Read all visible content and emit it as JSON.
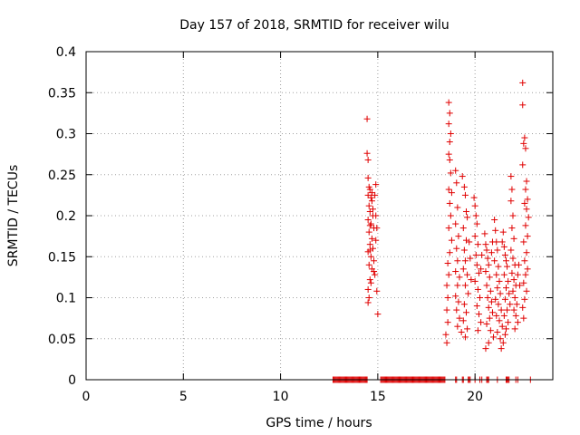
{
  "chart_data": {
    "type": "scatter",
    "title": "Day 157 of 2018, SRMTID for receiver wilu",
    "xlabel": "GPS time / hours",
    "ylabel": "SRMTID / TECUs",
    "xlim": [
      0,
      24
    ],
    "ylim": [
      0,
      0.4
    ],
    "xticks": [
      0,
      5,
      10,
      15,
      20
    ],
    "xtick_labels": [
      "0",
      "5",
      "10",
      "15",
      "20"
    ],
    "yticks": [
      0,
      0.05,
      0.1,
      0.15,
      0.2,
      0.25,
      0.3,
      0.35,
      0.4
    ],
    "ytick_labels": [
      "0",
      "0.05",
      "0.1",
      "0.15",
      "0.2",
      "0.25",
      "0.3",
      "0.35",
      "0.4"
    ],
    "grid": true,
    "marker": "plus",
    "color": "#e00000",
    "series": [
      {
        "name": "SRMTID",
        "points": [
          [
            14.45,
            0.318
          ],
          [
            14.45,
            0.276
          ],
          [
            14.5,
            0.268
          ],
          [
            14.5,
            0.246
          ],
          [
            14.55,
            0.235
          ],
          [
            14.6,
            0.232
          ],
          [
            14.5,
            0.225
          ],
          [
            14.65,
            0.222
          ],
          [
            14.7,
            0.218
          ],
          [
            14.55,
            0.212
          ],
          [
            14.6,
            0.205
          ],
          [
            14.75,
            0.2
          ],
          [
            14.5,
            0.195
          ],
          [
            14.65,
            0.19
          ],
          [
            14.8,
            0.185
          ],
          [
            14.55,
            0.18
          ],
          [
            14.7,
            0.172
          ],
          [
            14.6,
            0.165
          ],
          [
            14.75,
            0.16
          ],
          [
            14.5,
            0.156
          ],
          [
            14.65,
            0.15
          ],
          [
            14.8,
            0.145
          ],
          [
            14.55,
            0.14
          ],
          [
            14.7,
            0.135
          ],
          [
            14.85,
            0.128
          ],
          [
            14.6,
            0.122
          ],
          [
            14.5,
            0.11
          ],
          [
            14.55,
            0.1
          ],
          [
            14.5,
            0.094
          ],
          [
            14.95,
            0.108
          ],
          [
            15.0,
            0.08
          ],
          [
            14.9,
            0.238
          ],
          [
            14.85,
            0.225
          ],
          [
            14.9,
            0.2
          ],
          [
            14.95,
            0.185
          ],
          [
            14.9,
            0.17
          ],
          [
            14.6,
            0.188
          ],
          [
            14.75,
            0.208
          ],
          [
            14.7,
            0.228
          ],
          [
            14.6,
            0.158
          ],
          [
            14.8,
            0.132
          ],
          [
            14.65,
            0.118
          ],
          [
            18.65,
            0.338
          ],
          [
            18.7,
            0.325
          ],
          [
            18.65,
            0.312
          ],
          [
            18.75,
            0.3
          ],
          [
            18.7,
            0.29
          ],
          [
            18.65,
            0.275
          ],
          [
            18.7,
            0.268
          ],
          [
            18.75,
            0.252
          ],
          [
            18.65,
            0.232
          ],
          [
            18.8,
            0.228
          ],
          [
            18.7,
            0.215
          ],
          [
            18.75,
            0.2
          ],
          [
            18.65,
            0.185
          ],
          [
            18.8,
            0.17
          ],
          [
            18.7,
            0.155
          ],
          [
            18.6,
            0.142
          ],
          [
            18.65,
            0.128
          ],
          [
            18.55,
            0.115
          ],
          [
            18.6,
            0.1
          ],
          [
            18.55,
            0.085
          ],
          [
            18.6,
            0.07
          ],
          [
            18.5,
            0.055
          ],
          [
            18.55,
            0.045
          ],
          [
            19.0,
            0.255
          ],
          [
            19.05,
            0.24
          ],
          [
            19.1,
            0.21
          ],
          [
            19.0,
            0.19
          ],
          [
            19.15,
            0.175
          ],
          [
            19.05,
            0.16
          ],
          [
            19.1,
            0.145
          ],
          [
            19.0,
            0.132
          ],
          [
            19.2,
            0.125
          ],
          [
            19.1,
            0.115
          ],
          [
            19.0,
            0.102
          ],
          [
            19.15,
            0.095
          ],
          [
            19.05,
            0.085
          ],
          [
            19.2,
            0.075
          ],
          [
            19.1,
            0.065
          ],
          [
            19.3,
            0.058
          ],
          [
            19.35,
            0.248
          ],
          [
            19.45,
            0.235
          ],
          [
            19.5,
            0.225
          ],
          [
            19.55,
            0.205
          ],
          [
            19.6,
            0.198
          ],
          [
            19.4,
            0.185
          ],
          [
            19.55,
            0.17
          ],
          [
            19.45,
            0.158
          ],
          [
            19.5,
            0.145
          ],
          [
            19.4,
            0.135
          ],
          [
            19.6,
            0.128
          ],
          [
            19.5,
            0.115
          ],
          [
            19.65,
            0.105
          ],
          [
            19.45,
            0.092
          ],
          [
            19.55,
            0.082
          ],
          [
            19.4,
            0.072
          ],
          [
            19.6,
            0.062
          ],
          [
            19.5,
            0.052
          ],
          [
            19.7,
            0.168
          ],
          [
            19.75,
            0.148
          ],
          [
            19.8,
            0.122
          ],
          [
            19.95,
            0.222
          ],
          [
            20.0,
            0.212
          ],
          [
            20.05,
            0.2
          ],
          [
            20.1,
            0.19
          ],
          [
            20.0,
            0.175
          ],
          [
            20.15,
            0.165
          ],
          [
            20.05,
            0.152
          ],
          [
            20.1,
            0.14
          ],
          [
            20.2,
            0.13
          ],
          [
            20.0,
            0.12
          ],
          [
            20.15,
            0.11
          ],
          [
            20.25,
            0.1
          ],
          [
            20.1,
            0.09
          ],
          [
            20.2,
            0.08
          ],
          [
            20.3,
            0.07
          ],
          [
            20.15,
            0.06
          ],
          [
            20.35,
            0.152
          ],
          [
            20.3,
            0.135
          ],
          [
            20.5,
            0.178
          ],
          [
            20.55,
            0.165
          ],
          [
            20.6,
            0.158
          ],
          [
            20.65,
            0.148
          ],
          [
            20.7,
            0.14
          ],
          [
            20.55,
            0.132
          ],
          [
            20.75,
            0.125
          ],
          [
            20.6,
            0.115
          ],
          [
            20.8,
            0.108
          ],
          [
            20.65,
            0.1
          ],
          [
            20.85,
            0.095
          ],
          [
            20.7,
            0.088
          ],
          [
            20.9,
            0.082
          ],
          [
            20.75,
            0.075
          ],
          [
            20.6,
            0.068
          ],
          [
            20.8,
            0.06
          ],
          [
            20.95,
            0.052
          ],
          [
            20.7,
            0.045
          ],
          [
            20.55,
            0.038
          ],
          [
            20.9,
            0.168
          ],
          [
            20.85,
            0.155
          ],
          [
            21.0,
            0.195
          ],
          [
            21.05,
            0.182
          ],
          [
            21.1,
            0.168
          ],
          [
            21.15,
            0.158
          ],
          [
            21.0,
            0.145
          ],
          [
            21.2,
            0.138
          ],
          [
            21.1,
            0.128
          ],
          [
            21.25,
            0.12
          ],
          [
            21.15,
            0.112
          ],
          [
            21.3,
            0.105
          ],
          [
            21.05,
            0.098
          ],
          [
            21.2,
            0.092
          ],
          [
            21.35,
            0.085
          ],
          [
            21.1,
            0.078
          ],
          [
            21.25,
            0.072
          ],
          [
            21.4,
            0.065
          ],
          [
            21.15,
            0.058
          ],
          [
            21.3,
            0.05
          ],
          [
            21.45,
            0.045
          ],
          [
            21.35,
            0.038
          ],
          [
            21.5,
            0.162
          ],
          [
            21.55,
            0.152
          ],
          [
            21.6,
            0.145
          ],
          [
            21.65,
            0.138
          ],
          [
            21.5,
            0.128
          ],
          [
            21.7,
            0.12
          ],
          [
            21.6,
            0.112
          ],
          [
            21.75,
            0.105
          ],
          [
            21.55,
            0.098
          ],
          [
            21.8,
            0.092
          ],
          [
            21.65,
            0.085
          ],
          [
            21.5,
            0.078
          ],
          [
            21.7,
            0.07
          ],
          [
            21.6,
            0.062
          ],
          [
            21.55,
            0.055
          ],
          [
            21.45,
            0.18
          ],
          [
            21.4,
            0.168
          ],
          [
            21.85,
            0.248
          ],
          [
            21.9,
            0.232
          ],
          [
            21.85,
            0.218
          ],
          [
            21.95,
            0.2
          ],
          [
            21.9,
            0.185
          ],
          [
            22.0,
            0.172
          ],
          [
            21.85,
            0.158
          ],
          [
            21.95,
            0.148
          ],
          [
            22.05,
            0.14
          ],
          [
            21.9,
            0.13
          ],
          [
            22.0,
            0.122
          ],
          [
            22.1,
            0.115
          ],
          [
            21.95,
            0.108
          ],
          [
            22.05,
            0.1
          ],
          [
            22.15,
            0.092
          ],
          [
            22.0,
            0.085
          ],
          [
            22.1,
            0.078
          ],
          [
            22.2,
            0.07
          ],
          [
            22.05,
            0.062
          ],
          [
            22.25,
            0.14
          ],
          [
            22.2,
            0.128
          ],
          [
            22.3,
            0.115
          ],
          [
            22.45,
            0.362
          ],
          [
            22.45,
            0.335
          ],
          [
            22.55,
            0.295
          ],
          [
            22.5,
            0.288
          ],
          [
            22.6,
            0.282
          ],
          [
            22.45,
            0.262
          ],
          [
            22.65,
            0.242
          ],
          [
            22.6,
            0.232
          ],
          [
            22.7,
            0.22
          ],
          [
            22.55,
            0.215
          ],
          [
            22.65,
            0.208
          ],
          [
            22.75,
            0.198
          ],
          [
            22.6,
            0.188
          ],
          [
            22.7,
            0.175
          ],
          [
            22.5,
            0.168
          ],
          [
            22.65,
            0.155
          ],
          [
            22.55,
            0.145
          ],
          [
            22.7,
            0.135
          ],
          [
            22.6,
            0.128
          ],
          [
            22.5,
            0.118
          ],
          [
            22.65,
            0.108
          ],
          [
            22.55,
            0.098
          ],
          [
            22.45,
            0.088
          ],
          [
            22.5,
            0.075
          ]
        ]
      }
    ],
    "zero_band": {
      "points": [
        12.7,
        12.75,
        12.8,
        12.85,
        12.9,
        12.95,
        13.0,
        13.05,
        13.1,
        13.15,
        13.2,
        13.25,
        13.3,
        13.35,
        13.4,
        13.45,
        13.5,
        13.55,
        13.6,
        13.65,
        13.7,
        13.75,
        13.8,
        13.85,
        13.9,
        13.95,
        14.0,
        14.05,
        14.1,
        14.15,
        14.2,
        14.25,
        14.3,
        14.35,
        14.4,
        14.45,
        15.15,
        15.2,
        15.25,
        15.3,
        15.35,
        15.4,
        15.45,
        15.5,
        15.55,
        15.6,
        15.65,
        15.7,
        15.75,
        15.8,
        15.85,
        15.9,
        15.95,
        16.0,
        16.05,
        16.1,
        16.15,
        16.2,
        16.25,
        16.3,
        16.35,
        16.4,
        16.45,
        16.5,
        16.55,
        16.6,
        16.65,
        16.7,
        16.75,
        16.8,
        16.85,
        16.9,
        16.95,
        17.0,
        17.05,
        17.1,
        17.15,
        17.2,
        17.25,
        17.3,
        17.35,
        17.4,
        17.45,
        17.5,
        17.55,
        17.6,
        17.65,
        17.7,
        17.75,
        17.8,
        17.85,
        17.9,
        17.95,
        18.0,
        18.05,
        18.1,
        18.15,
        18.2,
        18.25,
        18.3,
        18.35,
        18.4,
        18.45,
        19.0,
        19.05,
        19.35,
        19.4,
        19.65,
        19.7,
        19.75,
        20.0,
        20.25,
        20.35,
        20.6,
        20.65,
        20.7,
        21.15,
        21.6,
        21.65,
        21.7,
        21.75,
        22.1,
        22.2,
        22.85
      ]
    }
  }
}
